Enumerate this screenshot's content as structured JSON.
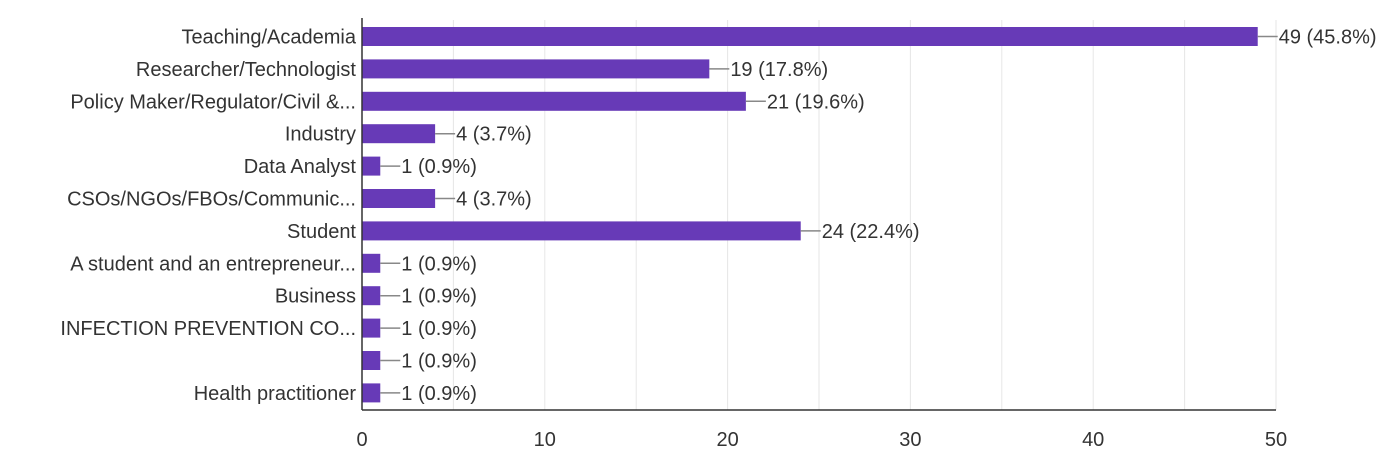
{
  "chart_data": {
    "type": "bar",
    "orientation": "horizontal",
    "categories": [
      "Teaching/Academia",
      "Researcher/Technologist",
      "Policy Maker/Regulator/Civil &...",
      "Industry",
      "Data Analyst",
      "CSOs/NGOs/FBOs/Communic...",
      "Student",
      "A student and an entrepreneur...",
      "Business",
      "INFECTION PREVENTION CO...",
      "",
      "Health practitioner"
    ],
    "values": [
      49,
      19,
      21,
      4,
      1,
      4,
      24,
      1,
      1,
      1,
      1,
      1
    ],
    "data_labels": [
      "49 (45.8%)",
      "19 (17.8%)",
      "21 (19.6%)",
      "4 (3.7%)",
      "1 (0.9%)",
      "4 (3.7%)",
      "24 (22.4%)",
      "1 (0.9%)",
      "1 (0.9%)",
      "1 (0.9%)",
      "1 (0.9%)",
      "1 (0.9%)"
    ],
    "xlim": [
      0,
      50
    ],
    "x_ticks": [
      0,
      10,
      20,
      30,
      40,
      50
    ],
    "x_tick_labels": [
      "0",
      "10",
      "20",
      "30",
      "40",
      "50"
    ],
    "grid": true,
    "legend": "none",
    "title": "",
    "xlabel": "",
    "ylabel": ""
  },
  "colors": {
    "bar": "#673ab7",
    "grid": "#e6e6e6",
    "axis": "#333333",
    "leader": "#888888",
    "text": "#333333"
  }
}
